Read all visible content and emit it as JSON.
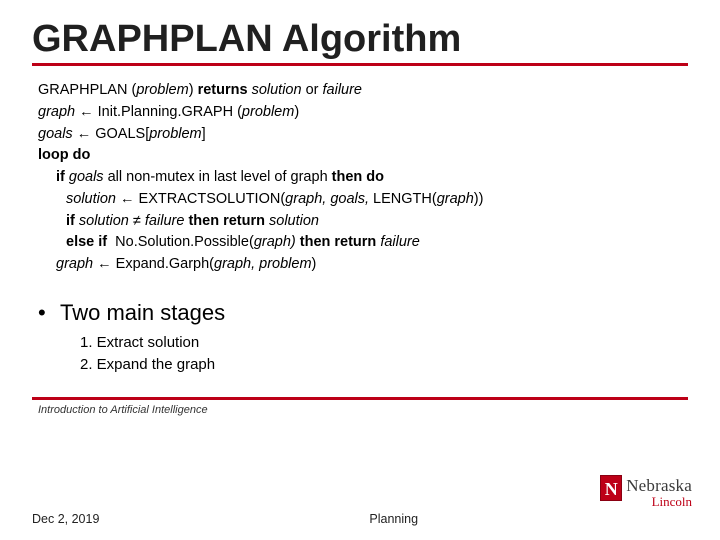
{
  "title": "GRAPHPLAN Algorithm",
  "pseudocode": {
    "l1a": "GRAPHPLAN (",
    "l1b": "problem",
    "l1c": ") ",
    "l1d": "returns ",
    "l1e": "solution ",
    "l1f": "or ",
    "l1g": "failure",
    "l2a": "graph",
    "l2b": " ← Init.Planning.GRAPH (",
    "l2c": "problem",
    "l2d": ")",
    "l3a": "goals",
    "l3b": " ← GOALS[",
    "l3c": "problem",
    "l3d": "]",
    "l4": "loop do",
    "l5a": "if ",
    "l5b": "goals ",
    "l5c": "all non-mutex in last level of graph ",
    "l5d": "then do",
    "l6a": "solution",
    "l6b": " ← EXTRACTSOLUTION(",
    "l6c": "graph, goals, ",
    "l6d": "LENGTH(",
    "l6e": "graph",
    "l6f": "))",
    "l7a": "if ",
    "l7b": "solution ",
    "l7c": "≠ ",
    "l7d": "failure ",
    "l7e": "then return ",
    "l7f": "solution",
    "l8a": "else if ",
    "l8b": " No.Solution.Possible(",
    "l8c": "graph) ",
    "l8d": "then return ",
    "l8e": "failure",
    "l9a": "graph",
    "l9b": " ← Expand.Garph(",
    "l9c": "graph, problem",
    "l9d": ")"
  },
  "bullet": {
    "dot": "•",
    "text": "Two main stages"
  },
  "sublist": {
    "s1": "1.  Extract solution",
    "s2": "2.  Expand the graph"
  },
  "footer": {
    "course": "Introduction to Artificial Intelligence",
    "date": "Dec 2, 2019",
    "topic": "Planning"
  },
  "logo": {
    "n": "N",
    "uname": "Nebraska",
    "place": "Lincoln"
  },
  "colors": {
    "accent": "#bd0017",
    "text": "#000000",
    "bg": "#ffffff"
  }
}
